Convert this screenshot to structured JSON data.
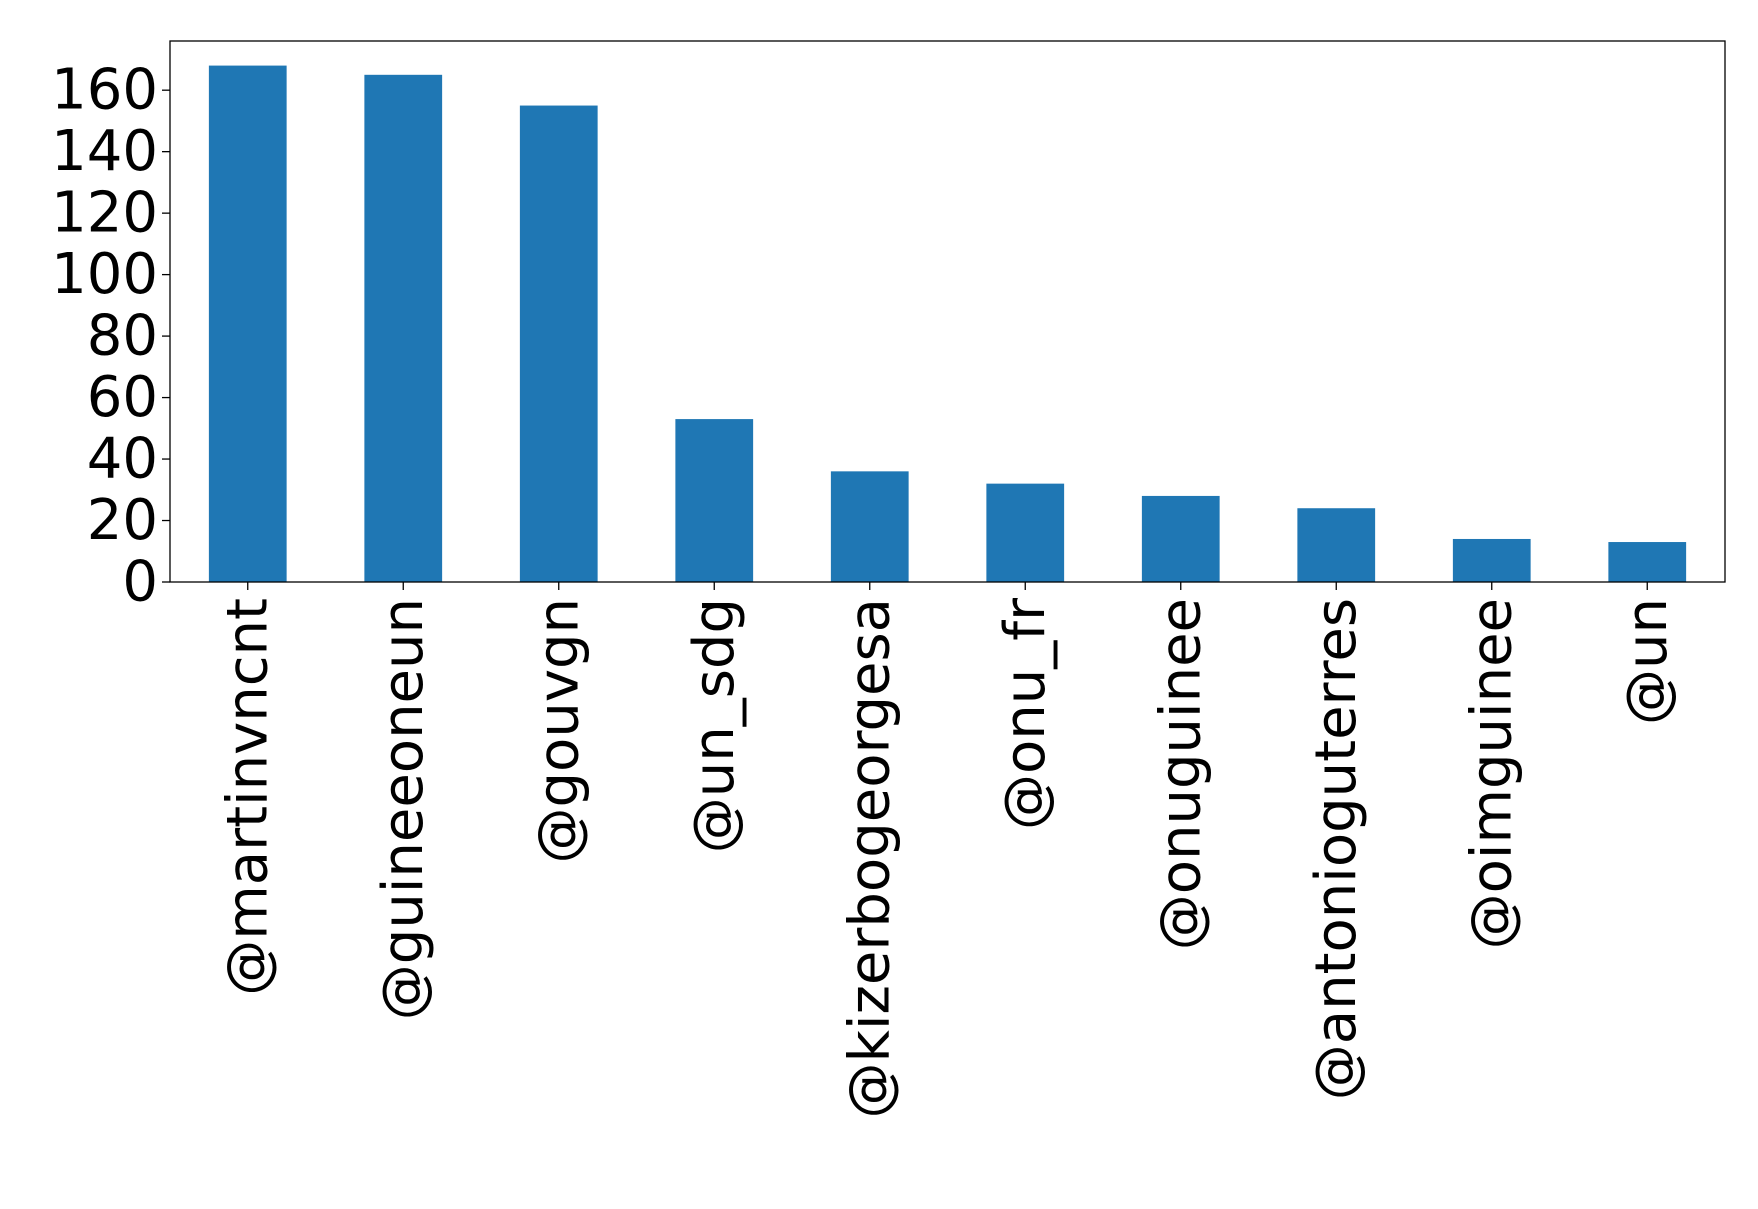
{
  "chart_data": {
    "type": "bar",
    "title": "",
    "xlabel": "",
    "ylabel": "",
    "categories": [
      "@martinvncnt",
      "@guineeoneun",
      "@gouvgn",
      "@un_sdg",
      "@kizerbogeorgesa",
      "@onu_fr",
      "@onuguinee",
      "@antonioguterres",
      "@oimguinee",
      "@un"
    ],
    "values": [
      168,
      165,
      155,
      53,
      36,
      32,
      28,
      24,
      14,
      13
    ],
    "ylim": [
      0,
      176
    ],
    "yticks": [
      0,
      20,
      40,
      60,
      80,
      100,
      120,
      140,
      160
    ],
    "grid": false,
    "legend": "none",
    "colors": {
      "bar": "#1f77b4",
      "axis": "#000000",
      "background": "#ffffff"
    }
  }
}
